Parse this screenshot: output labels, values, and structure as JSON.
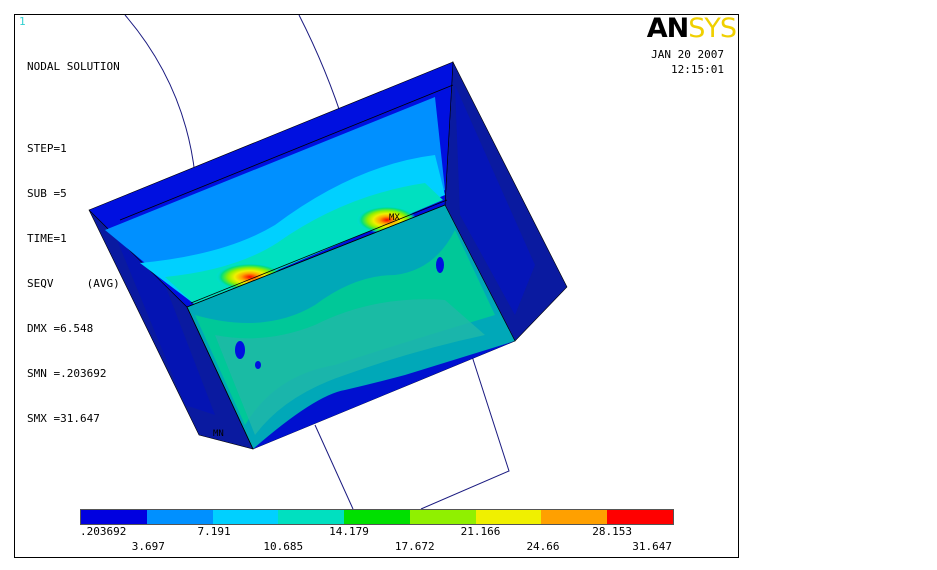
{
  "window_number": "1",
  "title": "NODAL SOLUTION",
  "info_lines": [
    "STEP=1",
    "SUB =5",
    "TIME=1",
    "SEQV     (AVG)",
    "DMX =6.548",
    "SMN =.203692",
    "SMX =31.647"
  ],
  "logo": {
    "an": "AN",
    "sys": "SYS"
  },
  "date": "JAN 20 2007",
  "time": "12:15:01",
  "markers": {
    "mx": "MX",
    "mn": "MN"
  },
  "legend": {
    "colors": [
      "#0000e0",
      "#0090ff",
      "#00d0ff",
      "#00e0c0",
      "#00e000",
      "#90f000",
      "#f0f000",
      "#ffa000",
      "#ff0000"
    ],
    "labels_top": [
      ".203692",
      "7.191",
      "14.179",
      "21.166",
      "28.153"
    ],
    "labels_bottom": [
      "3.697",
      "10.685",
      "17.672",
      "24.66",
      "31.647"
    ]
  }
}
